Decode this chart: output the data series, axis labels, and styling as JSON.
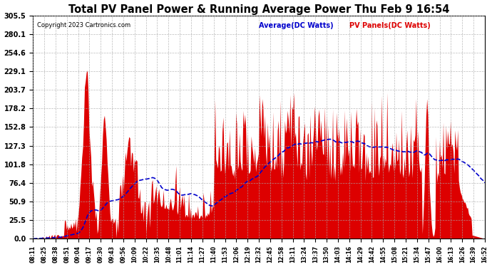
{
  "title": "Total PV Panel Power & Running Average Power Thu Feb 9 16:54",
  "copyright": "Copyright 2023 Cartronics.com",
  "legend_average": "Average(DC Watts)",
  "legend_pv": "PV Panels(DC Watts)",
  "ylabel_values": [
    305.5,
    280.1,
    254.6,
    229.1,
    203.7,
    178.2,
    152.8,
    127.3,
    101.8,
    76.4,
    50.9,
    25.5,
    0.0
  ],
  "ymax": 305.5,
  "ymin": 0.0,
  "background_color": "#ffffff",
  "plot_bg_color": "#ffffff",
  "grid_color": "#aaaaaa",
  "bar_color": "#dd0000",
  "avg_line_color": "#0000cc",
  "title_color": "#000000",
  "copyright_color": "#000000",
  "avg_legend_color": "#0000cc",
  "pv_legend_color": "#dd0000",
  "x_labels": [
    "08:11",
    "08:25",
    "08:38",
    "08:51",
    "09:04",
    "09:17",
    "09:30",
    "09:43",
    "09:56",
    "10:09",
    "10:22",
    "10:35",
    "10:48",
    "11:01",
    "11:14",
    "11:27",
    "11:40",
    "11:53",
    "12:06",
    "12:19",
    "12:32",
    "12:45",
    "12:58",
    "13:11",
    "13:24",
    "13:37",
    "13:50",
    "14:03",
    "14:16",
    "14:29",
    "14:42",
    "14:55",
    "15:08",
    "15:21",
    "15:34",
    "15:47",
    "16:00",
    "16:13",
    "16:26",
    "16:39",
    "16:52"
  ]
}
